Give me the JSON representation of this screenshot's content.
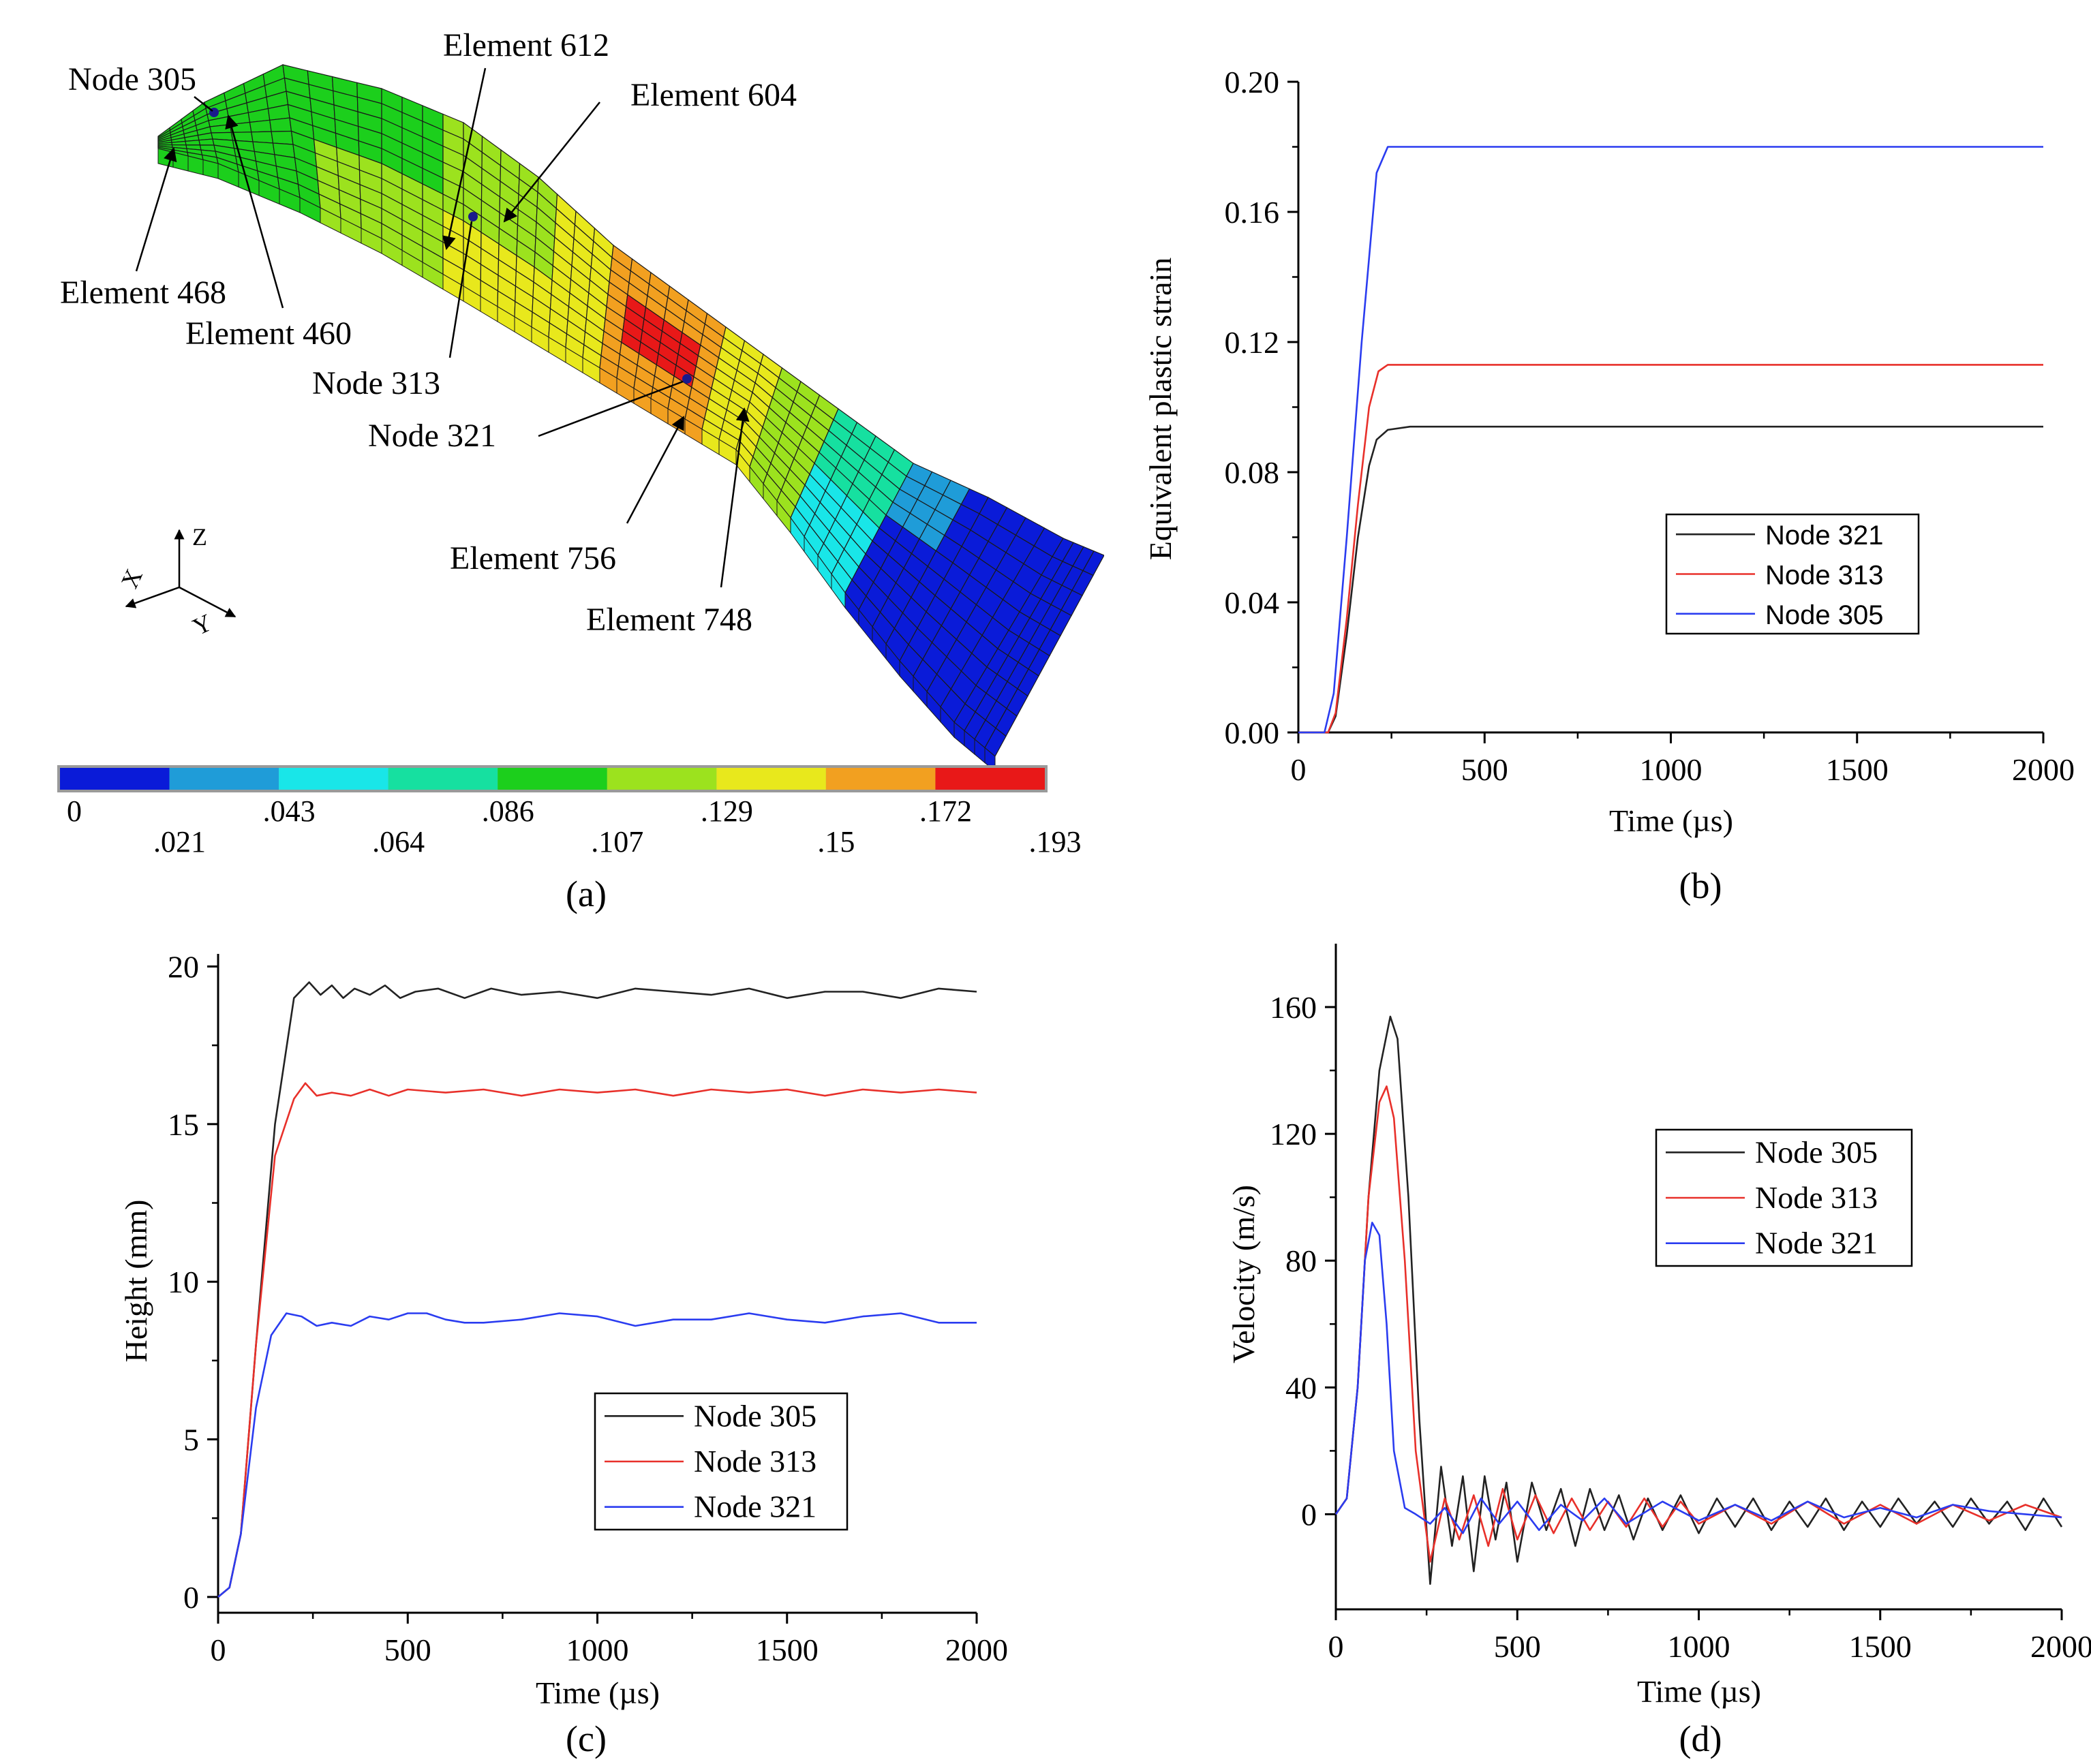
{
  "panel_a": {
    "label": "(a)",
    "callouts": {
      "node305": "Node 305",
      "node313": "Node 313",
      "node321": "Node 321",
      "el612": "Element 612",
      "el604": "Element 604",
      "el468": "Element 468",
      "el460": "Element 460",
      "el756": "Element 756",
      "el748": "Element 748"
    },
    "axes": {
      "z": "Z",
      "x": "X",
      "y": "Y"
    },
    "colorbar": {
      "colors": [
        "#0a1bd8",
        "#1f9cd8",
        "#19e6e8",
        "#16e0a0",
        "#1ccf1c",
        "#9ce21e",
        "#e8e81c",
        "#f2a020",
        "#e81818"
      ],
      "labels_top": [
        "0",
        ".043",
        ".086",
        ".129",
        ".172"
      ],
      "labels_bottom": [
        ".021",
        ".064",
        ".107",
        ".15",
        ".193"
      ]
    }
  },
  "chart_data": [
    {
      "id": "b",
      "type": "line",
      "panel_label": "(b)",
      "xlabel": "Time (µs)",
      "ylabel": "Equivalent plastic strain",
      "xlim": [
        0,
        2000
      ],
      "ylim": [
        0,
        0.2
      ],
      "xticks": [
        0,
        500,
        1000,
        1500,
        2000
      ],
      "xtick_labels": [
        "0",
        "500",
        "1000",
        "1500",
        "2000"
      ],
      "yticks": [
        0,
        0.04,
        0.08,
        0.12,
        0.16,
        0.2
      ],
      "ytick_labels": [
        "0.00",
        "0.04",
        "0.08",
        "0.12",
        "0.16",
        "0.20"
      ],
      "legend": "center-right",
      "series": [
        {
          "name": "Node 321",
          "color": "#222222",
          "x": [
            0,
            80,
            100,
            130,
            160,
            190,
            210,
            240,
            300,
            2000
          ],
          "y": [
            0,
            0,
            0.005,
            0.03,
            0.06,
            0.082,
            0.09,
            0.093,
            0.094,
            0.094
          ]
        },
        {
          "name": "Node 313",
          "color": "#e8302a",
          "x": [
            0,
            80,
            100,
            130,
            160,
            190,
            215,
            240,
            300,
            2000
          ],
          "y": [
            0,
            0,
            0.006,
            0.035,
            0.07,
            0.1,
            0.111,
            0.113,
            0.113,
            0.113
          ]
        },
        {
          "name": "Node 305",
          "color": "#2a3cf0",
          "x": [
            0,
            70,
            95,
            130,
            170,
            210,
            240,
            2000
          ],
          "y": [
            0,
            0,
            0.012,
            0.06,
            0.12,
            0.172,
            0.18,
            0.18
          ]
        }
      ]
    },
    {
      "id": "c",
      "type": "line",
      "panel_label": "(c)",
      "xlabel": "Time (µs)",
      "ylabel": "Height (mm)",
      "xlim": [
        0,
        2000
      ],
      "ylim": [
        -0.5,
        20.4
      ],
      "xticks": [
        0,
        500,
        1000,
        1500,
        2000
      ],
      "xtick_labels": [
        "0",
        "500",
        "1000",
        "1500",
        "2000"
      ],
      "yticks": [
        0,
        5,
        10,
        15,
        20
      ],
      "ytick_labels": [
        "0",
        "5",
        "10",
        "15",
        "20"
      ],
      "legend": "lower-center",
      "series": [
        {
          "name": "Node 305",
          "color": "#222222",
          "x": [
            0,
            30,
            60,
            100,
            150,
            200,
            240,
            270,
            300,
            330,
            360,
            400,
            440,
            480,
            520,
            580,
            650,
            720,
            800,
            900,
            1000,
            1100,
            1200,
            1300,
            1400,
            1500,
            1600,
            1700,
            1800,
            1900,
            2000
          ],
          "y": [
            0,
            0.3,
            2,
            8,
            15,
            19,
            19.5,
            19.1,
            19.4,
            19.0,
            19.3,
            19.1,
            19.4,
            19.0,
            19.2,
            19.3,
            19.0,
            19.3,
            19.1,
            19.2,
            19.0,
            19.3,
            19.2,
            19.1,
            19.3,
            19.0,
            19.2,
            19.2,
            19.0,
            19.3,
            19.2
          ]
        },
        {
          "name": "Node 313",
          "color": "#e8302a",
          "x": [
            0,
            30,
            60,
            100,
            150,
            200,
            230,
            260,
            300,
            350,
            400,
            450,
            500,
            600,
            700,
            800,
            900,
            1000,
            1100,
            1200,
            1300,
            1400,
            1500,
            1600,
            1700,
            1800,
            1900,
            2000
          ],
          "y": [
            0,
            0.3,
            2,
            8,
            14,
            15.8,
            16.3,
            15.9,
            16.0,
            15.9,
            16.1,
            15.9,
            16.1,
            16.0,
            16.1,
            15.9,
            16.1,
            16.0,
            16.1,
            15.9,
            16.1,
            16.0,
            16.1,
            15.9,
            16.1,
            16.0,
            16.1,
            16.0
          ]
        },
        {
          "name": "Node 321",
          "color": "#2a3cf0",
          "x": [
            0,
            30,
            60,
            100,
            140,
            180,
            220,
            260,
            300,
            350,
            400,
            450,
            500,
            550,
            600,
            650,
            700,
            800,
            900,
            1000,
            1100,
            1200,
            1300,
            1400,
            1500,
            1600,
            1700,
            1800,
            1900,
            2000
          ],
          "y": [
            0,
            0.3,
            2,
            6,
            8.3,
            9.0,
            8.9,
            8.6,
            8.7,
            8.6,
            8.9,
            8.8,
            9.0,
            9.0,
            8.8,
            8.7,
            8.7,
            8.8,
            9.0,
            8.9,
            8.6,
            8.8,
            8.8,
            9.0,
            8.8,
            8.7,
            8.9,
            9.0,
            8.7,
            8.7
          ]
        }
      ]
    },
    {
      "id": "d",
      "type": "line",
      "panel_label": "(d)",
      "xlabel": "Time (µs)",
      "ylabel": "Velocity (m/s)",
      "xlim": [
        0,
        2000
      ],
      "ylim": [
        -30,
        180
      ],
      "xticks": [
        0,
        500,
        1000,
        1500,
        2000
      ],
      "xtick_labels": [
        "0",
        "500",
        "1000",
        "1500",
        "2000"
      ],
      "yticks": [
        0,
        40,
        80,
        120,
        160
      ],
      "ytick_labels": [
        "0",
        "40",
        "80",
        "120",
        "160"
      ],
      "legend": "upper-center",
      "series": [
        {
          "name": "Node 305",
          "color": "#222222",
          "x": [
            0,
            30,
            60,
            90,
            120,
            150,
            170,
            200,
            230,
            260,
            290,
            320,
            350,
            380,
            410,
            440,
            470,
            500,
            540,
            580,
            620,
            660,
            700,
            740,
            780,
            820,
            860,
            900,
            950,
            1000,
            1050,
            1100,
            1150,
            1200,
            1250,
            1300,
            1350,
            1400,
            1450,
            1500,
            1550,
            1600,
            1650,
            1700,
            1750,
            1800,
            1850,
            1900,
            1950,
            2000
          ],
          "y": [
            0,
            5,
            40,
            100,
            140,
            157,
            150,
            100,
            30,
            -22,
            15,
            -10,
            12,
            -18,
            12,
            -8,
            10,
            -15,
            10,
            -5,
            8,
            -10,
            8,
            -5,
            6,
            -8,
            5,
            -5,
            6,
            -6,
            5,
            -4,
            5,
            -5,
            4,
            -4,
            5,
            -5,
            4,
            -4,
            5,
            -3,
            4,
            -4,
            5,
            -3,
            4,
            -5,
            5,
            -4
          ]
        },
        {
          "name": "Node 313",
          "color": "#e8302a",
          "x": [
            0,
            30,
            60,
            90,
            120,
            140,
            160,
            190,
            220,
            260,
            300,
            340,
            380,
            420,
            460,
            500,
            550,
            600,
            650,
            700,
            750,
            800,
            850,
            900,
            950,
            1000,
            1100,
            1200,
            1300,
            1400,
            1500,
            1600,
            1700,
            1800,
            1900,
            2000
          ],
          "y": [
            0,
            5,
            40,
            100,
            130,
            135,
            125,
            80,
            20,
            -15,
            5,
            -8,
            6,
            -10,
            8,
            -8,
            6,
            -6,
            5,
            -5,
            4,
            -4,
            5,
            -4,
            4,
            -3,
            3,
            -3,
            4,
            -3,
            3,
            -3,
            3,
            -2,
            3,
            -1
          ]
        },
        {
          "name": "Node 321",
          "color": "#2a3cf0",
          "x": [
            0,
            30,
            60,
            80,
            100,
            120,
            140,
            160,
            190,
            220,
            260,
            300,
            350,
            400,
            450,
            500,
            560,
            620,
            680,
            740,
            800,
            900,
            1000,
            1100,
            1200,
            1300,
            1400,
            1500,
            1600,
            1700,
            1800,
            1900,
            2000
          ],
          "y": [
            0,
            5,
            40,
            80,
            92,
            88,
            60,
            20,
            2,
            0,
            -3,
            2,
            -6,
            5,
            -3,
            4,
            -5,
            3,
            -2,
            5,
            -3,
            4,
            -2,
            3,
            -2,
            4,
            -1,
            2,
            -1,
            3,
            1,
            0,
            -1
          ]
        }
      ]
    }
  ]
}
